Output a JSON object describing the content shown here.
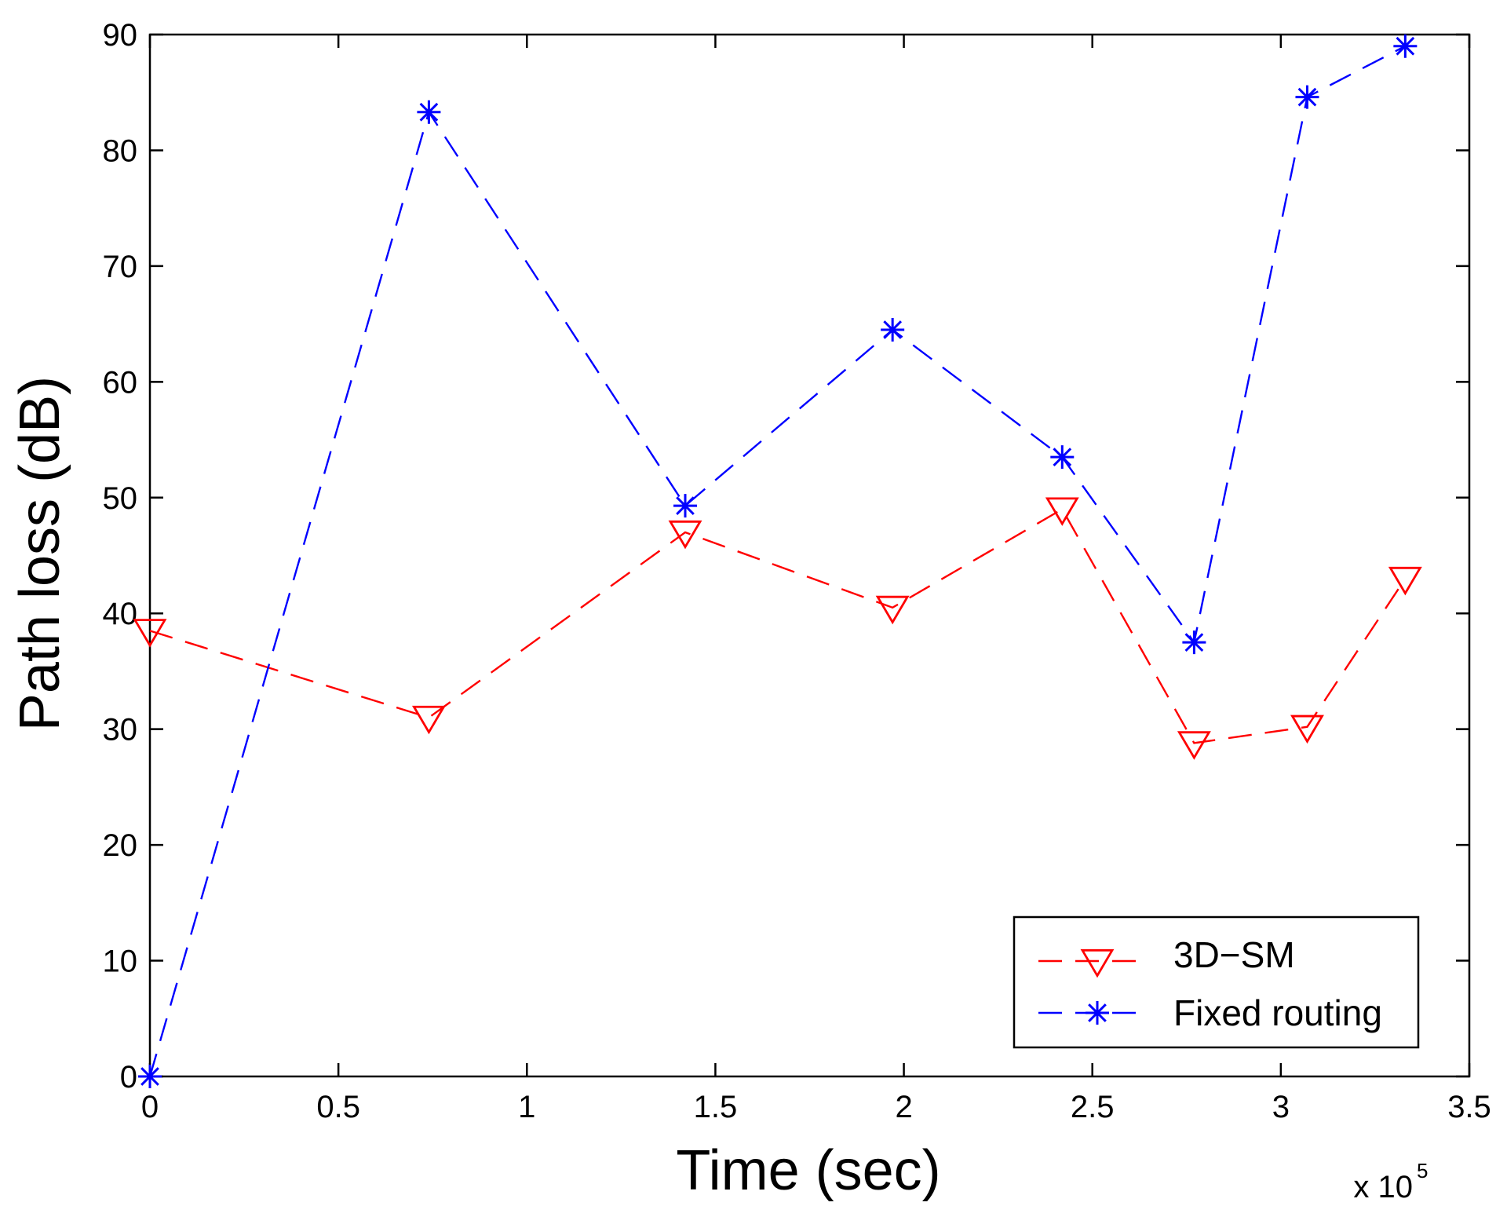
{
  "chart_data": {
    "type": "line",
    "xlabel": "Time (sec)",
    "ylabel": "Path loss (dB)",
    "x_exponent_base": "x 10",
    "x_exponent_power": "5",
    "xlim": [
      0,
      3.5
    ],
    "ylim": [
      0,
      90
    ],
    "xticks": [
      0,
      0.5,
      1,
      1.5,
      2,
      2.5,
      3,
      3.5
    ],
    "xtick_labels": [
      "0",
      "0.5",
      "1",
      "1.5",
      "2",
      "2.5",
      "3",
      "3.5"
    ],
    "yticks": [
      0,
      10,
      20,
      30,
      40,
      50,
      60,
      70,
      80,
      90
    ],
    "ytick_labels": [
      "0",
      "10",
      "20",
      "30",
      "40",
      "50",
      "60",
      "70",
      "80",
      "90"
    ],
    "grid": false,
    "legend_position": "bottom-right",
    "series": [
      {
        "name": "3D−SM",
        "color": "#ff0000",
        "marker": "triangle-down",
        "line_style": "dashed",
        "x": [
          0,
          0.74,
          1.42,
          1.97,
          2.42,
          2.77,
          3.07,
          3.33
        ],
        "y": [
          38.5,
          31.0,
          47.0,
          40.5,
          49.0,
          28.8,
          30.2,
          43.0
        ]
      },
      {
        "name": "Fixed routing",
        "color": "#0000ff",
        "marker": "asterisk",
        "line_style": "dashed",
        "x": [
          0,
          0.74,
          1.42,
          1.97,
          2.42,
          2.77,
          3.07,
          3.33
        ],
        "y": [
          0,
          83.3,
          49.3,
          64.5,
          53.5,
          37.5,
          84.6,
          89.0
        ]
      }
    ]
  }
}
